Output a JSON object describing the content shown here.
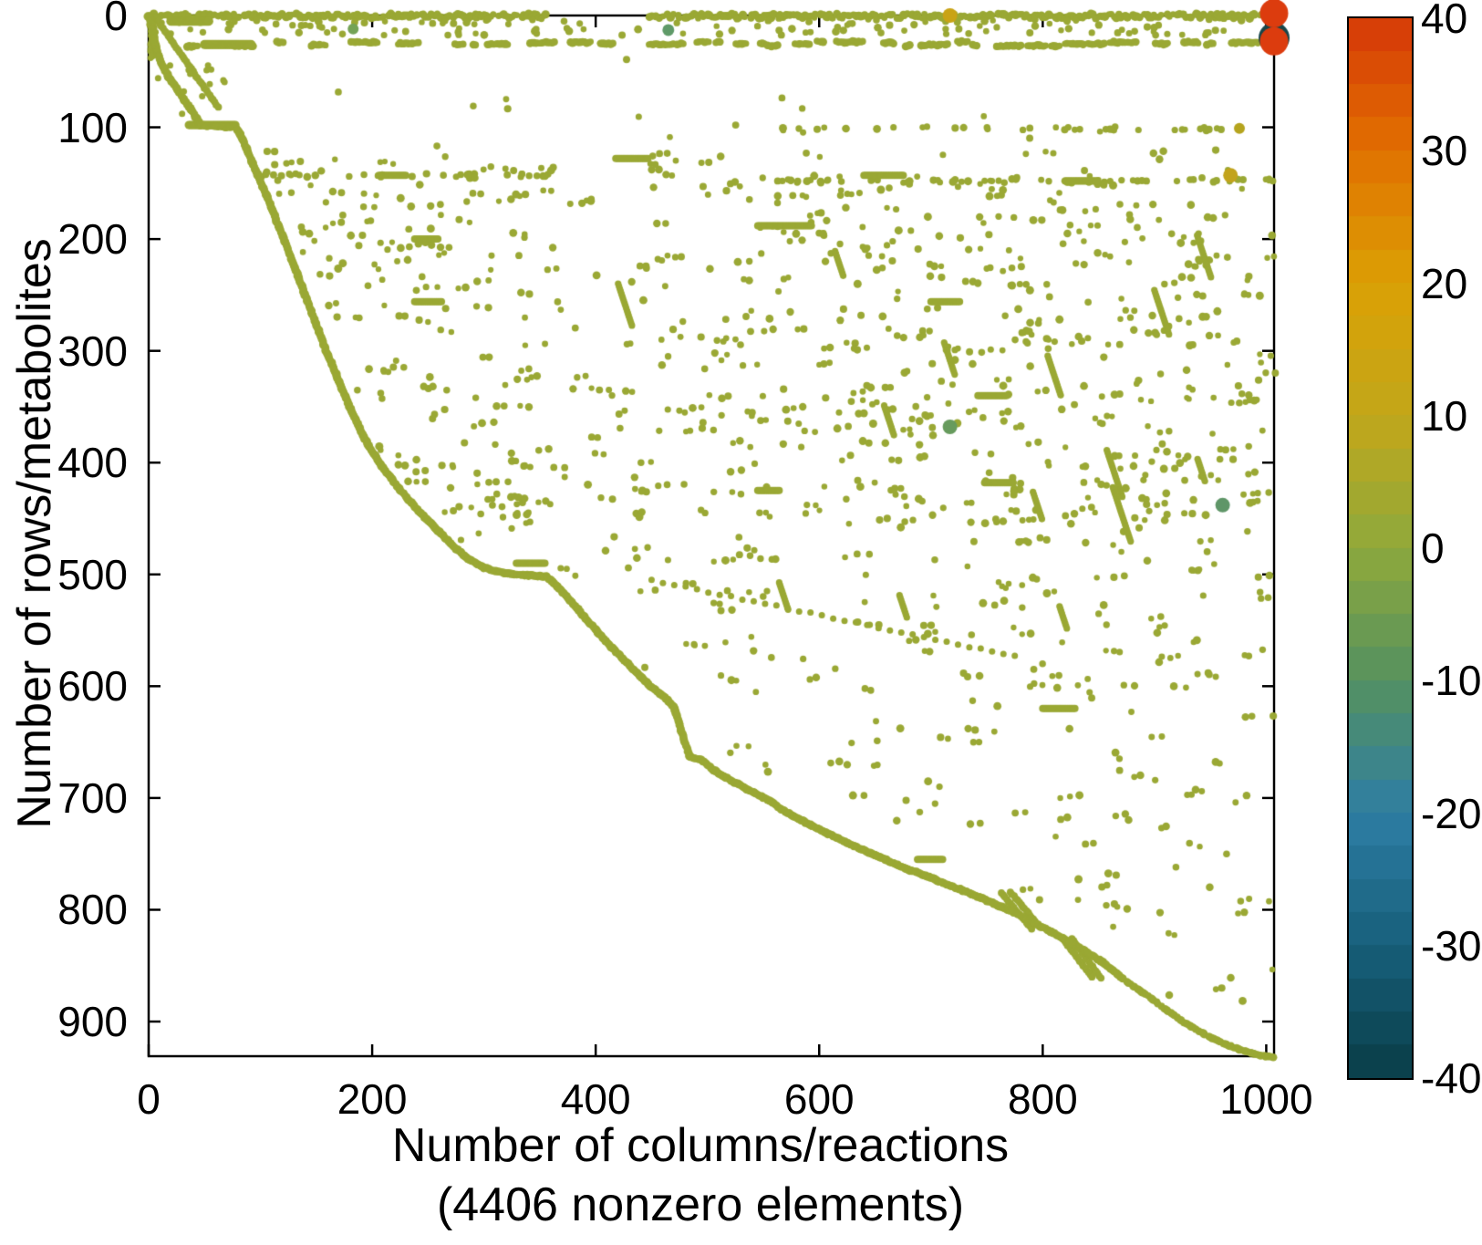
{
  "figure": {
    "background": "#ffffff",
    "axis_color": "#000000"
  },
  "chart_data": {
    "type": "scatter",
    "variant": "sparse-matrix-spy-plot",
    "title": "",
    "xlabel_line1": "Number of columns/reactions",
    "xlabel_line2": "(4406 nonzero elements)",
    "ylabel": "Number of rows/metabolites",
    "nonzero_elements": 4406,
    "xlim": [
      0,
      1007
    ],
    "ylim": [
      0,
      931
    ],
    "y_axis_reversed": true,
    "grid": false,
    "xticks": {
      "values": [
        0,
        200,
        400,
        600,
        800,
        1000
      ],
      "labels": [
        "0",
        "200",
        "400",
        "600",
        "800",
        "1000"
      ]
    },
    "yticks": {
      "values": [
        0,
        100,
        200,
        300,
        400,
        500,
        600,
        700,
        800,
        900
      ],
      "labels": [
        "0",
        "100",
        "200",
        "300",
        "400",
        "500",
        "600",
        "700",
        "800",
        "900"
      ]
    },
    "marker_color": "#9aa834",
    "colorbar": {
      "vmin": -40,
      "vmax": 40,
      "bands": 32,
      "tick_values": [
        40,
        30,
        20,
        10,
        0,
        -10,
        -20,
        -30,
        -40
      ],
      "tick_labels": [
        "40",
        "30",
        "20",
        "10",
        "0",
        "-10",
        "-20",
        "-30",
        "-40"
      ],
      "stops": [
        [
          40,
          "#d63808"
        ],
        [
          30,
          "#e17000"
        ],
        [
          20,
          "#dba004"
        ],
        [
          10,
          "#c2a71a"
        ],
        [
          0,
          "#8ea93c"
        ],
        [
          -10,
          "#55915f"
        ],
        [
          -20,
          "#2e7ea4"
        ],
        [
          -30,
          "#175f7b"
        ],
        [
          -40,
          "#093d46"
        ]
      ]
    },
    "staircase": [
      [
        0,
        0
      ],
      [
        2,
        6
      ],
      [
        4,
        16
      ],
      [
        6,
        26
      ],
      [
        9,
        36
      ],
      [
        13,
        46
      ],
      [
        18,
        55
      ],
      [
        25,
        65
      ],
      [
        32,
        76
      ],
      [
        38,
        84
      ],
      [
        43,
        92
      ],
      [
        46,
        98
      ],
      [
        78,
        100
      ],
      [
        82,
        106
      ],
      [
        87,
        118
      ],
      [
        93,
        132
      ],
      [
        99,
        146
      ],
      [
        105,
        160
      ],
      [
        111,
        174
      ],
      [
        116,
        188
      ],
      [
        122,
        202
      ],
      [
        128,
        218
      ],
      [
        134,
        234
      ],
      [
        140,
        250
      ],
      [
        146,
        266
      ],
      [
        152,
        282
      ],
      [
        158,
        298
      ],
      [
        164,
        312
      ],
      [
        170,
        327
      ],
      [
        176,
        341
      ],
      [
        183,
        357
      ],
      [
        190,
        372
      ],
      [
        197,
        385
      ],
      [
        205,
        398
      ],
      [
        214,
        410
      ],
      [
        224,
        423
      ],
      [
        235,
        436
      ],
      [
        247,
        449
      ],
      [
        259,
        461
      ],
      [
        272,
        474
      ],
      [
        286,
        486
      ],
      [
        300,
        494
      ],
      [
        318,
        499
      ],
      [
        356,
        502
      ],
      [
        366,
        511
      ],
      [
        377,
        523
      ],
      [
        389,
        537
      ],
      [
        402,
        552
      ],
      [
        415,
        566
      ],
      [
        428,
        579
      ],
      [
        441,
        592
      ],
      [
        450,
        601
      ],
      [
        462,
        610
      ],
      [
        470,
        618
      ],
      [
        484,
        663
      ],
      [
        495,
        666
      ],
      [
        507,
        676
      ],
      [
        524,
        686
      ],
      [
        541,
        695
      ],
      [
        557,
        703
      ],
      [
        566,
        710
      ],
      [
        578,
        717
      ],
      [
        592,
        724
      ],
      [
        608,
        732
      ],
      [
        625,
        740
      ],
      [
        642,
        748
      ],
      [
        659,
        755
      ],
      [
        677,
        763
      ],
      [
        694,
        769
      ],
      [
        711,
        776
      ],
      [
        729,
        783
      ],
      [
        746,
        790
      ],
      [
        762,
        797
      ],
      [
        778,
        804
      ],
      [
        793,
        812
      ],
      [
        808,
        820
      ],
      [
        823,
        828
      ],
      [
        838,
        837
      ],
      [
        852,
        846
      ],
      [
        864,
        855
      ],
      [
        872,
        862
      ],
      [
        885,
        871
      ],
      [
        898,
        880
      ],
      [
        911,
        890
      ],
      [
        924,
        899
      ],
      [
        937,
        907
      ],
      [
        950,
        914
      ],
      [
        963,
        920
      ],
      [
        976,
        925
      ],
      [
        989,
        929
      ],
      [
        1006,
        932
      ]
    ],
    "special_points": [
      {
        "col": 183,
        "row": 12,
        "color": "#74a356",
        "radius": 6
      },
      {
        "col": 465,
        "row": 13,
        "color": "#5f9a68",
        "radius": 6.5
      },
      {
        "col": 717,
        "row": 0,
        "color": "#c9a315",
        "radius": 8
      },
      {
        "col": 976,
        "row": 101,
        "color": "#b5a41e",
        "radius": 6
      },
      {
        "col": 968,
        "row": 143,
        "color": "#c2a31c",
        "radius": 8
      },
      {
        "col": 717,
        "row": 368,
        "color": "#679b5d",
        "radius": 8
      },
      {
        "col": 961,
        "row": 438,
        "color": "#5f9668",
        "radius": 8
      }
    ],
    "outliers": [
      {
        "name": "dark-ring",
        "col": 1007,
        "row": 20,
        "color": "#17464a",
        "radius": 17
      },
      {
        "name": "red-low",
        "col": 1007,
        "row": 23,
        "color": "#dc3c0e",
        "radius": 15.5
      },
      {
        "name": "red-top",
        "col": 1007,
        "row": -2,
        "color": "#dc3c0e",
        "radius": 15.5
      }
    ],
    "pattern": {
      "seed": 12,
      "top_row": {
        "segments": [
          [
            0,
            356
          ],
          [
            448,
            1007
          ]
        ],
        "step": 2.1,
        "gap_prob": 0.08,
        "row_jitter": 2
      },
      "left_strip": {
        "col": 1,
        "rows": [
          0,
          38
        ]
      },
      "second_band": {
        "rows": [
          23,
          29
        ],
        "split_col": 420,
        "left_gap": [
          8,
          40
        ],
        "right_gap": [
          2,
          18
        ],
        "seg_cols": [
          3,
          25
        ]
      },
      "upper_scatter": {
        "rows": [
          3,
          18
        ],
        "count": 130
      },
      "sparse_mid": {
        "rows": [
          38,
          118
        ],
        "count": 18,
        "cols": [
          120,
          1005
        ]
      },
      "row_lines": [
        {
          "row": 101,
          "cols": [
            560,
            1007
          ],
          "count": 26
        },
        {
          "row": 148,
          "cols": [
            555,
            1007
          ],
          "count": 40
        },
        {
          "row": 143,
          "cols": [
            95,
            355
          ],
          "count": 26
        }
      ],
      "main_scatter": {
        "count": 1150,
        "pair_prob": 0.32
      },
      "h_bars": [
        [
          5,
          20,
          55,
          5.2
        ],
        [
          26,
          50,
          92,
          5
        ],
        [
          98,
          36,
          78,
          4.6
        ],
        [
          143,
          206,
          231,
          4
        ],
        [
          148,
          820,
          850,
          4.2
        ],
        [
          128,
          418,
          448,
          4
        ],
        [
          188,
          545,
          594,
          4
        ],
        [
          200,
          238,
          260,
          4
        ],
        [
          256,
          238,
          263,
          4
        ],
        [
          256,
          700,
          726,
          4
        ],
        [
          340,
          742,
          769,
          4
        ],
        [
          418,
          748,
          774,
          4
        ],
        [
          425,
          545,
          565,
          4
        ],
        [
          490,
          329,
          356,
          4
        ],
        [
          620,
          800,
          829,
          4
        ],
        [
          755,
          688,
          711,
          4
        ],
        [
          143,
          640,
          676,
          4
        ]
      ],
      "diag_dashes": {
        "count": 15,
        "col_range": [
          360,
          940
        ],
        "row_range": [
          125,
          560
        ],
        "len": [
          20,
          55
        ],
        "slope": 0.33
      },
      "fixed_diagonals": [
        [
          [
            7,
            3
          ],
          [
            62,
            82
          ]
        ],
        [
          [
            763,
            785
          ],
          [
            790,
            817
          ]
        ],
        [
          [
            771,
            784
          ],
          [
            798,
            816
          ]
        ],
        [
          [
            818,
            826
          ],
          [
            844,
            860
          ]
        ],
        [
          [
            826,
            826
          ],
          [
            852,
            861
          ]
        ]
      ],
      "long_diagonal": {
        "from": [
          450,
          505
        ],
        "to": [
          775,
          573
        ],
        "step": 13
      },
      "wedge_scatter": {
        "count": 14,
        "cols": [
          8,
          75
        ],
        "rows": [
          15,
          95
        ]
      }
    }
  }
}
